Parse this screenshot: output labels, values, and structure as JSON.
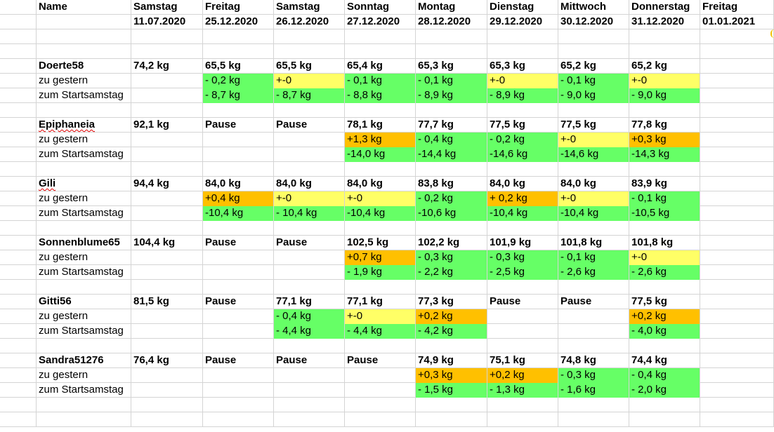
{
  "columns": [
    {
      "day": "Name",
      "date": ""
    },
    {
      "day": "Samstag",
      "date": "11.07.2020"
    },
    {
      "day": "Freitag",
      "date": "25.12.2020"
    },
    {
      "day": "Samstag",
      "date": "26.12.2020"
    },
    {
      "day": "Sonntag",
      "date": "27.12.2020"
    },
    {
      "day": "Montag",
      "date": "28.12.2020"
    },
    {
      "day": "Dienstag",
      "date": "29.12.2020"
    },
    {
      "day": "Mittwoch",
      "date": "30.12.2020"
    },
    {
      "day": "Donnerstag",
      "date": "31.12.2020"
    },
    {
      "day": "Freitag",
      "date": "01.01.2021"
    }
  ],
  "row_labels": {
    "delta_yesterday": "zu gestern",
    "delta_start": "zum Startsamstag"
  },
  "colors": {
    "loss": "#66ff66",
    "neutral": "#ffff66",
    "gain": "#ffc000",
    "grid": "#d4d4d4"
  },
  "people": [
    {
      "name": "Doerte58",
      "spellcheck_marked": false,
      "weights": [
        "74,2 kg",
        "65,5 kg",
        "65,5 kg",
        "65,4 kg",
        "65,3 kg",
        "65,3 kg",
        "65,2 kg",
        "65,2 kg",
        ""
      ],
      "zu_gestern": [
        {
          "v": "",
          "c": ""
        },
        {
          "v": "- 0,2 kg",
          "c": "g"
        },
        {
          "v": "+-0",
          "c": "y"
        },
        {
          "v": "- 0,1 kg",
          "c": "g"
        },
        {
          "v": "- 0,1 kg",
          "c": "g"
        },
        {
          "v": "+-0",
          "c": "y"
        },
        {
          "v": "- 0,1 kg",
          "c": "g"
        },
        {
          "v": "+-0",
          "c": "y"
        },
        {
          "v": "",
          "c": ""
        }
      ],
      "zum_start": [
        {
          "v": "",
          "c": ""
        },
        {
          "v": "- 8,7 kg",
          "c": "g"
        },
        {
          "v": "- 8,7 kg",
          "c": "g"
        },
        {
          "v": "- 8,8 kg",
          "c": "g"
        },
        {
          "v": "- 8,9 kg",
          "c": "g"
        },
        {
          "v": "- 8,9 kg",
          "c": "g"
        },
        {
          "v": "- 9,0 kg",
          "c": "g"
        },
        {
          "v": "- 9,0 kg",
          "c": "g"
        },
        {
          "v": "",
          "c": ""
        }
      ]
    },
    {
      "name": "Epiphaneia",
      "spellcheck_marked": true,
      "weights": [
        "92,1 kg",
        "Pause",
        "Pause",
        "78,1 kg",
        "77,7 kg",
        "77,5 kg",
        "77,5 kg",
        "77,8 kg",
        ""
      ],
      "zu_gestern": [
        {
          "v": "",
          "c": ""
        },
        {
          "v": "",
          "c": ""
        },
        {
          "v": "",
          "c": ""
        },
        {
          "v": "+1,3 kg",
          "c": "o"
        },
        {
          "v": "- 0,4 kg",
          "c": "g"
        },
        {
          "v": "- 0,2 kg",
          "c": "g"
        },
        {
          "v": "+-0",
          "c": "y"
        },
        {
          "v": "+0,3 kg",
          "c": "o"
        },
        {
          "v": "",
          "c": ""
        }
      ],
      "zum_start": [
        {
          "v": "",
          "c": ""
        },
        {
          "v": "",
          "c": ""
        },
        {
          "v": "",
          "c": ""
        },
        {
          "v": "-14,0 kg",
          "c": "g"
        },
        {
          "v": "-14,4 kg",
          "c": "g"
        },
        {
          "v": "-14,6 kg",
          "c": "g"
        },
        {
          "v": "-14,6 kg",
          "c": "g"
        },
        {
          "v": "-14,3 kg",
          "c": "g"
        },
        {
          "v": "",
          "c": ""
        }
      ]
    },
    {
      "name": "Gili",
      "spellcheck_marked": true,
      "weights": [
        "94,4 kg",
        "84,0 kg",
        "84,0 kg",
        "84,0 kg",
        "83,8 kg",
        "84,0 kg",
        "84,0 kg",
        "83,9 kg",
        ""
      ],
      "zu_gestern": [
        {
          "v": "",
          "c": ""
        },
        {
          "v": "+0,4 kg",
          "c": "o"
        },
        {
          "v": "+-0",
          "c": "y"
        },
        {
          "v": "+-0",
          "c": "y"
        },
        {
          "v": "- 0,2 kg",
          "c": "g"
        },
        {
          "v": "+ 0,2 kg",
          "c": "o"
        },
        {
          "v": "+-0",
          "c": "y"
        },
        {
          "v": "- 0,1 kg",
          "c": "g"
        },
        {
          "v": "",
          "c": ""
        }
      ],
      "zum_start": [
        {
          "v": "",
          "c": ""
        },
        {
          "v": "-10,4 kg",
          "c": "g"
        },
        {
          "v": "- 10,4 kg",
          "c": "g"
        },
        {
          "v": "-10,4 kg",
          "c": "g"
        },
        {
          "v": "-10,6 kg",
          "c": "g"
        },
        {
          "v": "-10,4 kg",
          "c": "g"
        },
        {
          "v": "-10,4 kg",
          "c": "g"
        },
        {
          "v": "-10,5 kg",
          "c": "g"
        },
        {
          "v": "",
          "c": ""
        }
      ]
    },
    {
      "name": "Sonnenblume65",
      "spellcheck_marked": false,
      "weights": [
        "104,4 kg",
        "Pause",
        "Pause",
        "102,5 kg",
        "102,2 kg",
        "101,9 kg",
        "101,8 kg",
        "101,8 kg",
        ""
      ],
      "zu_gestern": [
        {
          "v": "",
          "c": ""
        },
        {
          "v": "",
          "c": ""
        },
        {
          "v": "",
          "c": ""
        },
        {
          "v": "+0,7 kg",
          "c": "o"
        },
        {
          "v": "- 0,3 kg",
          "c": "g"
        },
        {
          "v": "- 0,3 kg",
          "c": "g"
        },
        {
          "v": "- 0,1 kg",
          "c": "g"
        },
        {
          "v": "+-0",
          "c": "y"
        },
        {
          "v": "",
          "c": ""
        }
      ],
      "zum_start": [
        {
          "v": "",
          "c": ""
        },
        {
          "v": "",
          "c": ""
        },
        {
          "v": "",
          "c": ""
        },
        {
          "v": "- 1,9 kg",
          "c": "g"
        },
        {
          "v": "- 2,2 kg",
          "c": "g"
        },
        {
          "v": "- 2,5 kg",
          "c": "g"
        },
        {
          "v": "- 2,6 kg",
          "c": "g"
        },
        {
          "v": "- 2,6 kg",
          "c": "g"
        },
        {
          "v": "",
          "c": ""
        }
      ]
    },
    {
      "name": "Gitti56",
      "spellcheck_marked": false,
      "weights": [
        "81,5 kg",
        "Pause",
        "77,1 kg",
        "77,1 kg",
        "77,3 kg",
        "Pause",
        "Pause",
        "77,5 kg",
        ""
      ],
      "zu_gestern": [
        {
          "v": "",
          "c": ""
        },
        {
          "v": "",
          "c": ""
        },
        {
          "v": "- 0,4 kg",
          "c": "g"
        },
        {
          "v": "+-0",
          "c": "y"
        },
        {
          "v": "+0,2 kg",
          "c": "o"
        },
        {
          "v": "",
          "c": ""
        },
        {
          "v": "",
          "c": ""
        },
        {
          "v": "+0,2 kg",
          "c": "o"
        },
        {
          "v": "",
          "c": ""
        }
      ],
      "zum_start": [
        {
          "v": "",
          "c": ""
        },
        {
          "v": "",
          "c": ""
        },
        {
          "v": "- 4,4 kg",
          "c": "g"
        },
        {
          "v": "- 4,4 kg",
          "c": "g"
        },
        {
          "v": "- 4,2 kg",
          "c": "g"
        },
        {
          "v": "",
          "c": ""
        },
        {
          "v": "",
          "c": ""
        },
        {
          "v": "- 4,0 kg",
          "c": "g"
        },
        {
          "v": "",
          "c": ""
        }
      ]
    },
    {
      "name": "Sandra51276",
      "spellcheck_marked": false,
      "weights": [
        "76,4 kg",
        "Pause",
        "Pause",
        "Pause",
        "74,9 kg",
        "75,1 kg",
        "74,8 kg",
        "74,4 kg",
        ""
      ],
      "zu_gestern": [
        {
          "v": "",
          "c": ""
        },
        {
          "v": "",
          "c": ""
        },
        {
          "v": "",
          "c": ""
        },
        {
          "v": "",
          "c": ""
        },
        {
          "v": "+0,3 kg",
          "c": "o"
        },
        {
          "v": "+0,2 kg",
          "c": "o"
        },
        {
          "v": "- 0,3 kg",
          "c": "g"
        },
        {
          "v": "- 0,4 kg",
          "c": "g"
        },
        {
          "v": "",
          "c": ""
        }
      ],
      "zum_start": [
        {
          "v": "",
          "c": ""
        },
        {
          "v": "",
          "c": ""
        },
        {
          "v": "",
          "c": ""
        },
        {
          "v": "",
          "c": ""
        },
        {
          "v": "- 1,5 kg",
          "c": "g"
        },
        {
          "v": "- 1,3 kg",
          "c": "g"
        },
        {
          "v": "- 1,6 kg",
          "c": "g"
        },
        {
          "v": "- 2,0 kg",
          "c": "g"
        },
        {
          "v": "",
          "c": ""
        }
      ]
    }
  ]
}
